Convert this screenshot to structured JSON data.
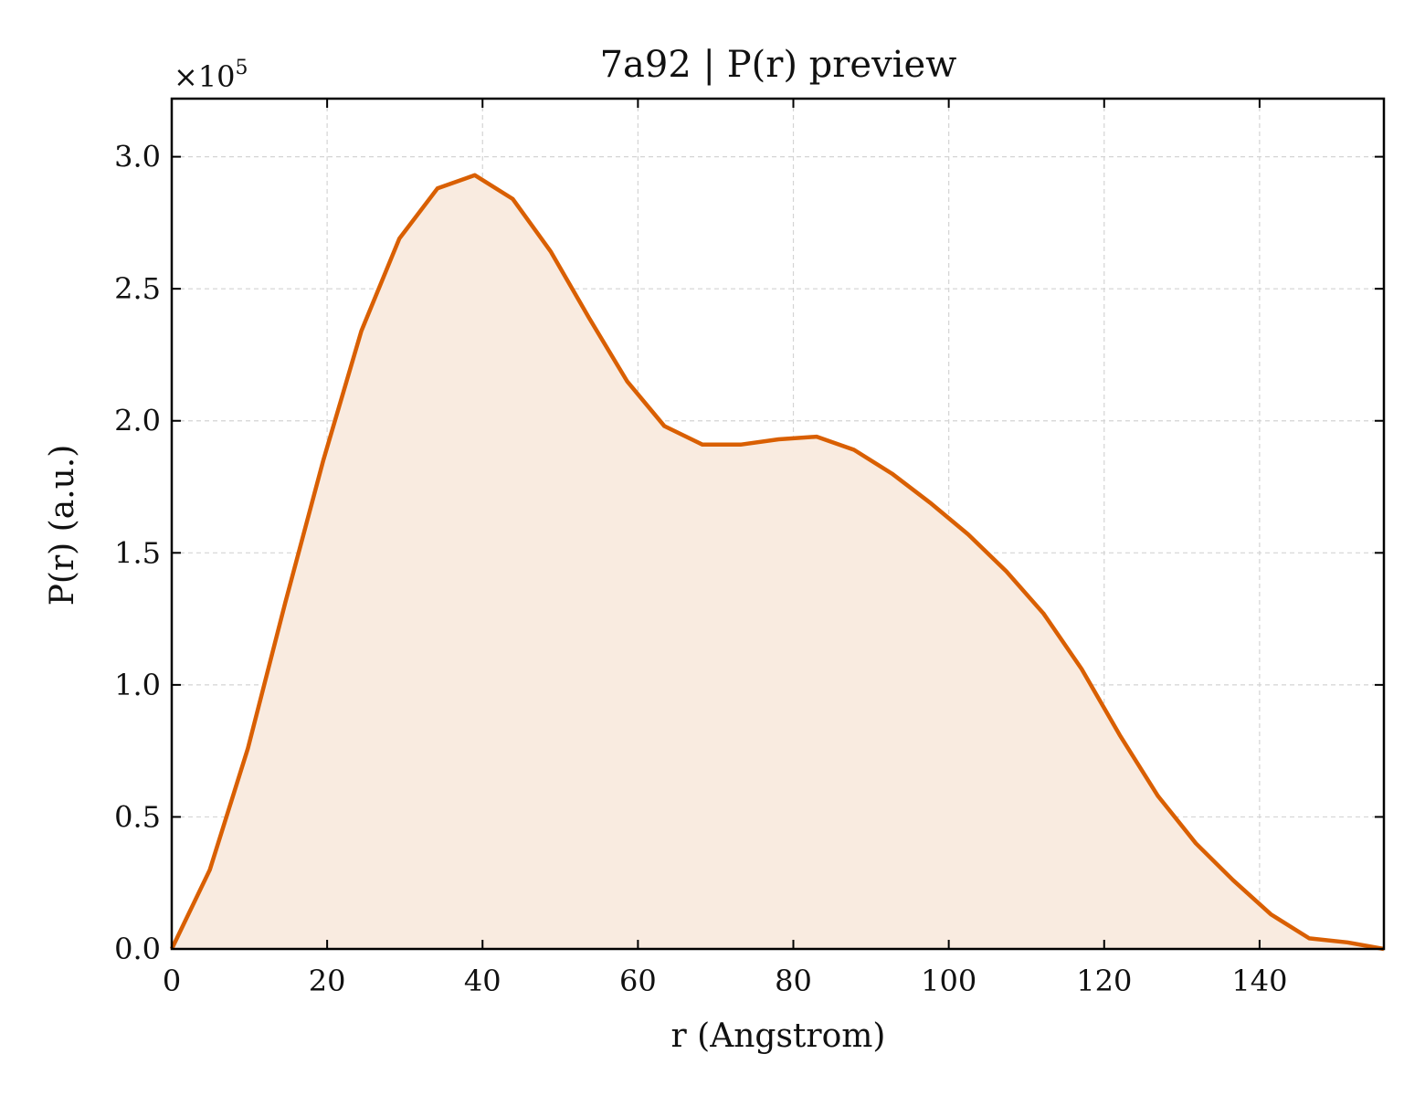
{
  "chart_data": {
    "type": "area",
    "title": "7a92 | P(r) preview",
    "xlabel": "r (Angstrom)",
    "ylabel": "P(r) (a.u.)",
    "y_multiplier": "×10",
    "y_multiplier_exponent": "5",
    "xlim": [
      0,
      156
    ],
    "ylim": [
      0,
      3.22
    ],
    "xticks": [
      0,
      20,
      40,
      60,
      80,
      100,
      120,
      140
    ],
    "yticks": [
      0.0,
      0.5,
      1.0,
      1.5,
      2.0,
      2.5,
      3.0
    ],
    "ytick_labels": [
      "0.0",
      "0.5",
      "1.0",
      "1.5",
      "2.0",
      "2.5",
      "3.0"
    ],
    "grid": true,
    "line_color": "#d95f02",
    "fill_color": "#f9ebe0",
    "series": [
      {
        "x": [
          0,
          4.9,
          9.8,
          14.6,
          19.5,
          24.4,
          29.3,
          34.2,
          39.0,
          43.9,
          48.8,
          53.7,
          58.6,
          63.4,
          68.3,
          73.2,
          78.1,
          83.0,
          87.8,
          92.7,
          97.6,
          102.5,
          107.4,
          112.2,
          117.1,
          122.0,
          126.9,
          131.8,
          136.6,
          141.5,
          146.4,
          151.3,
          156.0
        ],
        "y": [
          0.0,
          0.3,
          0.76,
          1.31,
          1.85,
          2.34,
          2.69,
          2.88,
          2.93,
          2.84,
          2.64,
          2.39,
          2.15,
          1.98,
          1.91,
          1.91,
          1.93,
          1.94,
          1.89,
          1.8,
          1.69,
          1.57,
          1.43,
          1.27,
          1.06,
          0.81,
          0.58,
          0.4,
          0.26,
          0.13,
          0.04,
          0.025,
          0.0
        ]
      }
    ]
  }
}
